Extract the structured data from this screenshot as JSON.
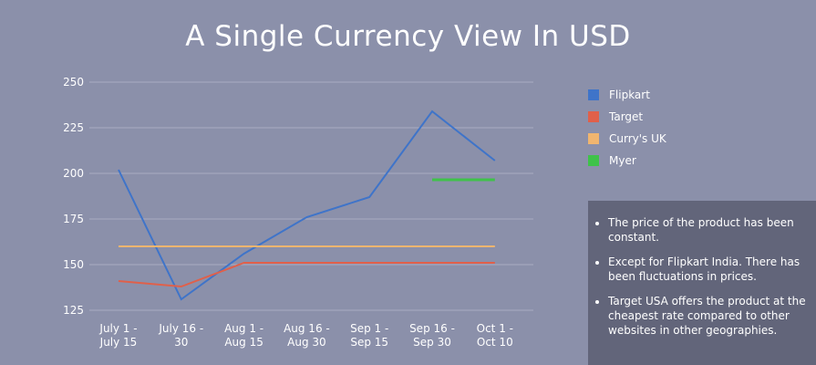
{
  "chart_data": {
    "type": "line",
    "title": "A Single Currency View In USD",
    "categories": [
      [
        "July 1 -",
        "July 15"
      ],
      [
        "July 16 -",
        "30"
      ],
      [
        "Aug 1 -",
        "Aug 15"
      ],
      [
        "Aug 16 -",
        "Aug 30"
      ],
      [
        "Sep 1 -",
        "Sep 15"
      ],
      [
        "Sep 16 -",
        "Sep 30"
      ],
      [
        "Oct 1 -",
        "Oct 10"
      ]
    ],
    "ylim": [
      125,
      250
    ],
    "yticks": [
      125,
      150,
      175,
      200,
      225,
      250
    ],
    "grid": true,
    "legend_position": "right",
    "series": [
      {
        "name": "Flipkart",
        "color": "#3f74c9",
        "values": [
          202,
          131,
          156,
          176,
          187,
          234,
          207
        ]
      },
      {
        "name": "Target",
        "color": "#e0604a",
        "values": [
          141,
          138,
          151,
          151,
          151,
          151,
          151
        ]
      },
      {
        "name": "Curry's UK",
        "color": "#f0b56f",
        "values": [
          160,
          160,
          160,
          160,
          160,
          160,
          160
        ]
      },
      {
        "name": "Myer",
        "color": "#3fc24a",
        "values": [
          null,
          null,
          null,
          null,
          null,
          196.5,
          196.5
        ]
      }
    ]
  },
  "notes": [
    "The price of the product has been constant.",
    "Except for Flipkart India. There has been fluctuations in prices.",
    "Target USA offers the product at the cheapest rate compared to other websites in other geographies."
  ]
}
